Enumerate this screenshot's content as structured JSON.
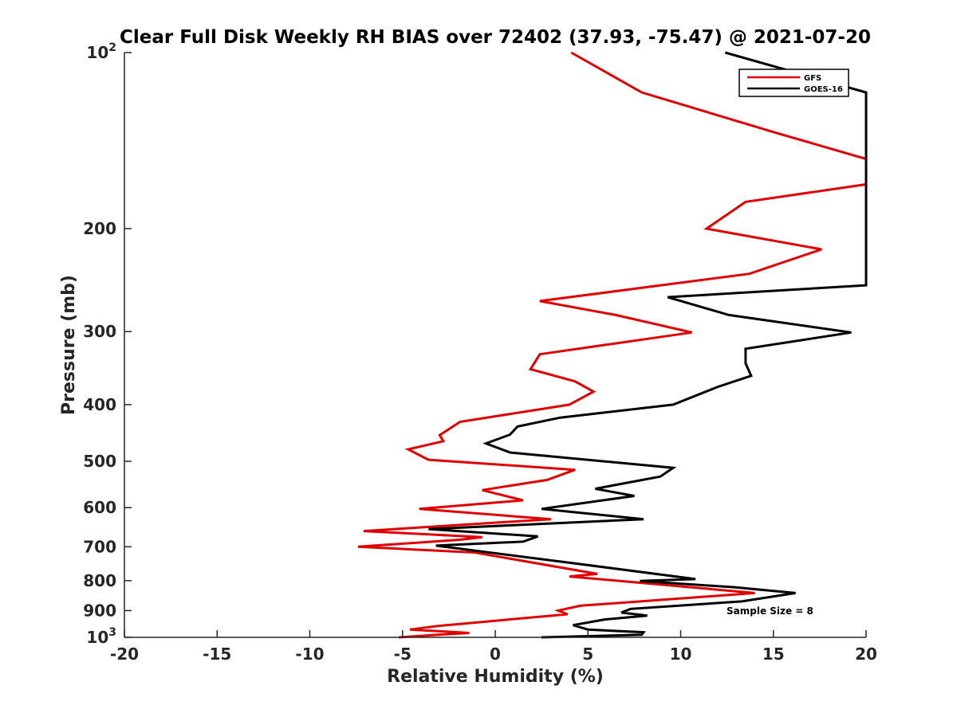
{
  "chart_data": {
    "type": "line",
    "title": "Clear Full Disk Weekly RH BIAS over 72402 (37.93, -75.47) @ 2021-07-20",
    "xlabel": "Relative Humidity (%)",
    "ylabel": "Pressure (mb)",
    "xlim": [
      -20,
      20
    ],
    "ylim": [
      1000,
      100
    ],
    "yscale": "log",
    "xticks": [
      -20,
      -15,
      -10,
      -5,
      0,
      5,
      10,
      15,
      20
    ],
    "xtick_labels": [
      "-20",
      "-15",
      "-10",
      "-5",
      "0",
      "5",
      "10",
      "15",
      "20"
    ],
    "yticks": [
      100,
      200,
      300,
      400,
      500,
      600,
      700,
      800,
      900,
      1000
    ],
    "ytick_labels": [
      {
        "value": 100,
        "base": "10",
        "exp": "2"
      },
      {
        "value": 200,
        "base": "200",
        "exp": ""
      },
      {
        "value": 300,
        "base": "300",
        "exp": ""
      },
      {
        "value": 400,
        "base": "400",
        "exp": ""
      },
      {
        "value": 500,
        "base": "500",
        "exp": ""
      },
      {
        "value": 600,
        "base": "600",
        "exp": ""
      },
      {
        "value": 700,
        "base": "700",
        "exp": ""
      },
      {
        "value": 800,
        "base": "800",
        "exp": ""
      },
      {
        "value": 900,
        "base": "900",
        "exp": ""
      },
      {
        "value": 1000,
        "base": "10",
        "exp": "3"
      }
    ],
    "legend_position": "top-right",
    "series": [
      {
        "name": "GFS",
        "color": "#e00000",
        "points": [
          [
            4.1,
            100
          ],
          [
            7.9,
            117
          ],
          [
            15.1,
            137
          ],
          [
            20.0,
            152
          ],
          [
            20.0,
            168
          ],
          [
            13.5,
            180
          ],
          [
            11.4,
            200
          ],
          [
            17.6,
            217
          ],
          [
            13.7,
            239
          ],
          [
            2.4,
            266
          ],
          [
            6.5,
            281
          ],
          [
            10.6,
            301
          ],
          [
            2.4,
            328
          ],
          [
            1.9,
            348
          ],
          [
            4.3,
            365
          ],
          [
            5.3,
            380
          ],
          [
            4.0,
            400
          ],
          [
            -1.9,
            428
          ],
          [
            -3.0,
            451
          ],
          [
            -2.8,
            462
          ],
          [
            -4.7,
            477
          ],
          [
            -3.6,
            497
          ],
          [
            4.3,
            517
          ],
          [
            2.8,
            538
          ],
          [
            -0.7,
            560
          ],
          [
            1.5,
            583
          ],
          [
            -4.1,
            603
          ],
          [
            3.0,
            628
          ],
          [
            -7.1,
            658
          ],
          [
            -0.7,
            674
          ],
          [
            -1.9,
            681
          ],
          [
            -7.4,
            700
          ],
          [
            -1.1,
            716
          ],
          [
            5.5,
            779
          ],
          [
            4.0,
            787
          ],
          [
            10.0,
            818
          ],
          [
            14.0,
            840
          ],
          [
            4.6,
            883
          ],
          [
            3.4,
            900
          ],
          [
            3.9,
            913
          ],
          [
            -3.1,
            956
          ],
          [
            -4.6,
            970
          ],
          [
            -1.4,
            983
          ],
          [
            -3.1,
            990
          ],
          [
            -5.2,
            1000
          ]
        ]
      },
      {
        "name": "GOES-16",
        "color": "#000000",
        "points": [
          [
            12.4,
            100
          ],
          [
            20.0,
            117
          ],
          [
            20.0,
            250
          ],
          [
            9.3,
            262
          ],
          [
            12.6,
            281
          ],
          [
            19.2,
            301
          ],
          [
            13.5,
            321
          ],
          [
            13.5,
            340
          ],
          [
            13.8,
            357
          ],
          [
            12.0,
            373
          ],
          [
            9.6,
            400
          ],
          [
            3.5,
            421
          ],
          [
            1.2,
            436
          ],
          [
            0.8,
            450
          ],
          [
            -0.5,
            466
          ],
          [
            0.8,
            483
          ],
          [
            9.6,
            513
          ],
          [
            8.9,
            531
          ],
          [
            5.4,
            557
          ],
          [
            7.5,
            573
          ],
          [
            2.5,
            603
          ],
          [
            8.0,
            628
          ],
          [
            -3.6,
            653
          ],
          [
            2.3,
            672
          ],
          [
            1.5,
            686
          ],
          [
            -3.2,
            697
          ],
          [
            4.1,
            746
          ],
          [
            10.8,
            795
          ],
          [
            7.8,
            801
          ],
          [
            12.9,
            821
          ],
          [
            16.2,
            840
          ],
          [
            13.3,
            868
          ],
          [
            7.3,
            894
          ],
          [
            6.8,
            907
          ],
          [
            8.2,
            918
          ],
          [
            5.9,
            932
          ],
          [
            4.2,
            953
          ],
          [
            5.0,
            970
          ],
          [
            8.0,
            980
          ],
          [
            7.9,
            990
          ],
          [
            2.5,
            1000
          ]
        ]
      }
    ],
    "annotation": "Sample Size = 8"
  }
}
